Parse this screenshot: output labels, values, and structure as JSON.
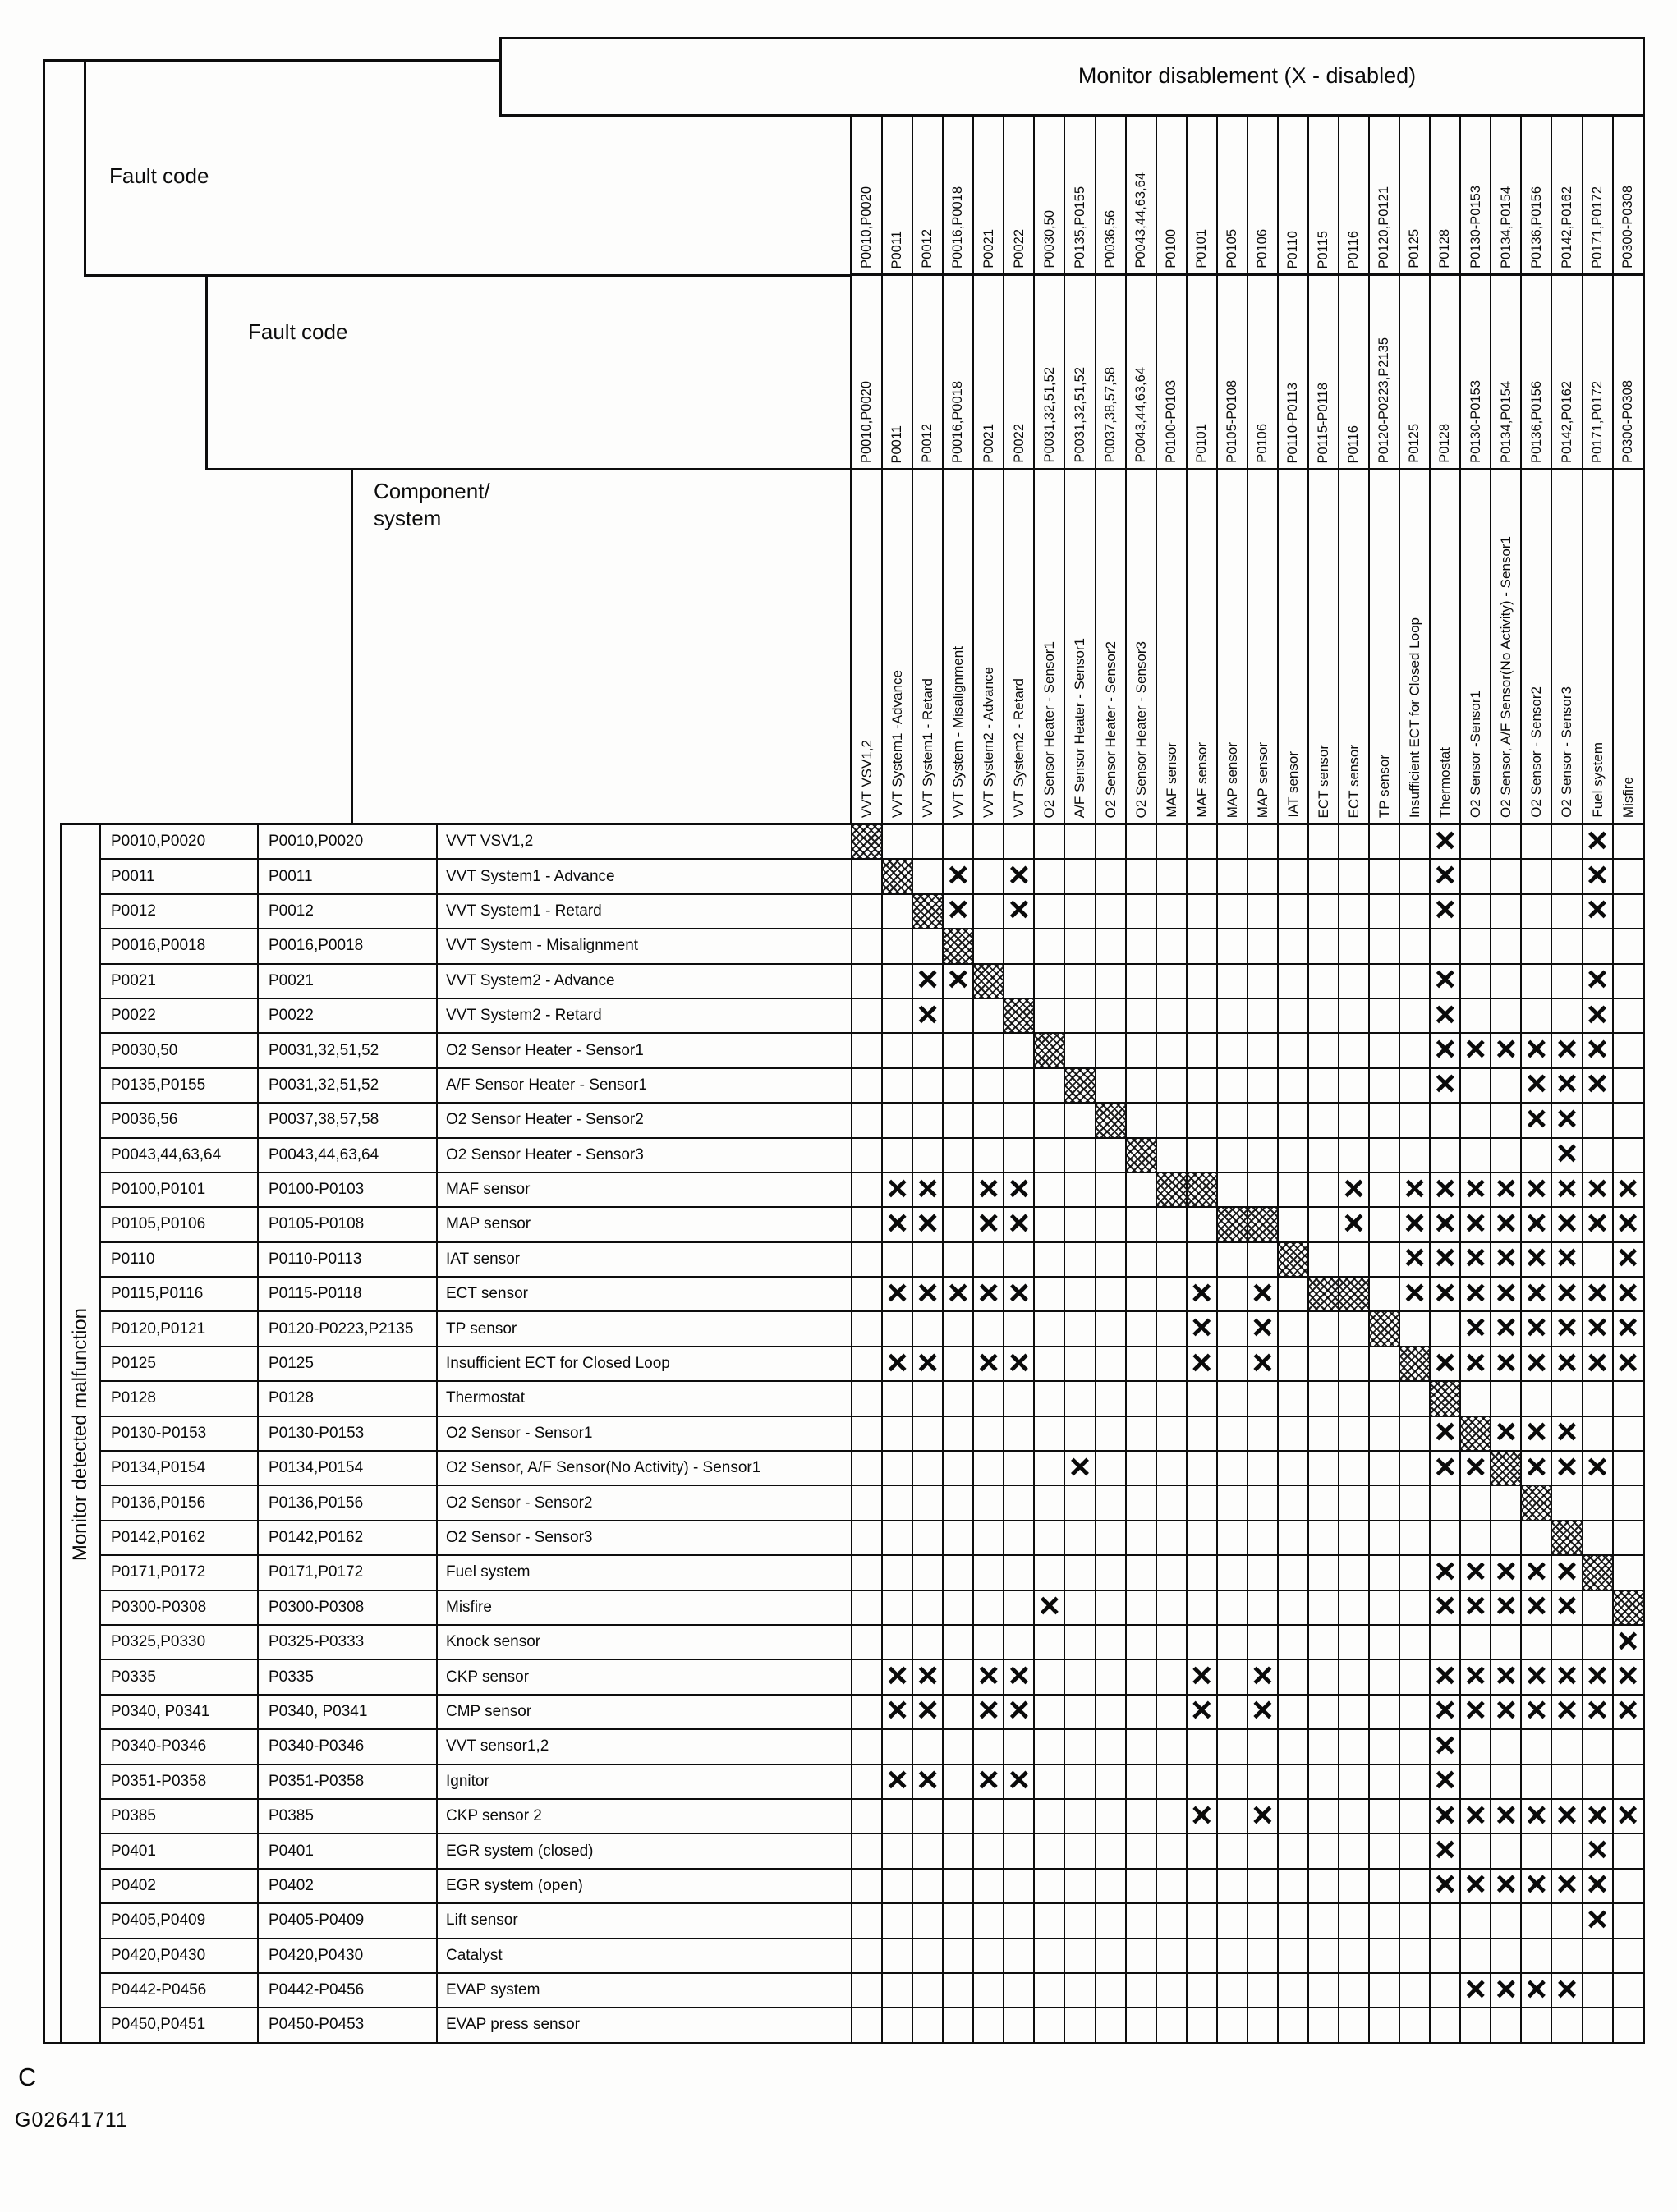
{
  "header": {
    "monitor_disablement": "Monitor disablement (X - disabled)",
    "fault_code_label_1": "Fault code",
    "fault_code_label_2": "Fault code",
    "component_label": "Component/\nsystem",
    "left_axis_label": "Monitor detected malfunction"
  },
  "marks": {
    "x_symbol": "×"
  },
  "columns": [
    {
      "band1": "P0010,P0020",
      "band2": "P0010,P0020",
      "component": "VVT VSV1,2"
    },
    {
      "band1": "P0011",
      "band2": "P0011",
      "component": "VVT System1 -Advance"
    },
    {
      "band1": "P0012",
      "band2": "P0012",
      "component": "VVT System1 - Retard"
    },
    {
      "band1": "P0016,P0018",
      "band2": "P0016,P0018",
      "component": "VVT System - Misalignment"
    },
    {
      "band1": "P0021",
      "band2": "P0021",
      "component": "VVT System2 - Advance"
    },
    {
      "band1": "P0022",
      "band2": "P0022",
      "component": "VVT System2 - Retard"
    },
    {
      "band1": "P0030,50",
      "band2": "P0031,32,51,52",
      "component": "O2 Sensor Heater - Sensor1"
    },
    {
      "band1": "P0135,P0155",
      "band2": "P0031,32,51,52",
      "component": "A/F Sensor Heater - Sensor1"
    },
    {
      "band1": "P0036,56",
      "band2": "P0037,38,57,58",
      "component": "O2 Sensor Heater - Sensor2"
    },
    {
      "band1": "P0043,44,63,64",
      "band2": "P0043,44,63,64",
      "component": "O2 Sensor Heater - Sensor3"
    },
    {
      "band1": "P0100",
      "band2": "P0100-P0103",
      "component": "MAF sensor"
    },
    {
      "band1": "P0101",
      "band2": "P0101",
      "component": "MAF sensor"
    },
    {
      "band1": "P0105",
      "band2": "P0105-P0108",
      "component": "MAP sensor"
    },
    {
      "band1": "P0106",
      "band2": "P0106",
      "component": "MAP sensor"
    },
    {
      "band1": "P0110",
      "band2": "P0110-P0113",
      "component": "IAT sensor"
    },
    {
      "band1": "P0115",
      "band2": "P0115-P0118",
      "component": "ECT sensor"
    },
    {
      "band1": "P0116",
      "band2": "P0116",
      "component": "ECT sensor"
    },
    {
      "band1": "P0120,P0121",
      "band2": "P0120-P0223,P2135",
      "component": "TP sensor"
    },
    {
      "band1": "P0125",
      "band2": "P0125",
      "component": "Insufficient ECT for Closed Loop"
    },
    {
      "band1": "P0128",
      "band2": "P0128",
      "component": "Thermostat"
    },
    {
      "band1": "P0130-P0153",
      "band2": "P0130-P0153",
      "component": "O2 Sensor -Sensor1"
    },
    {
      "band1": "P0134,P0154",
      "band2": "P0134,P0154",
      "component": "O2 Sensor, A/F Sensor(No Activity) - Sensor1"
    },
    {
      "band1": "P0136,P0156",
      "band2": "P0136,P0156",
      "component": "O2 Sensor - Sensor2"
    },
    {
      "band1": "P0142,P0162",
      "band2": "P0142,P0162",
      "component": "O2 Sensor - Sensor3"
    },
    {
      "band1": "P0171,P0172",
      "band2": "P0171,P0172",
      "component": "Fuel system"
    },
    {
      "band1": "P0300-P0308",
      "band2": "P0300-P0308",
      "component": "Misfire"
    }
  ],
  "rows": [
    {
      "fault1": "P0010,P0020",
      "fault2": "P0010,P0020",
      "component": "VVT VSV1,2",
      "shaded": [
        1
      ],
      "x": [
        20,
        25
      ]
    },
    {
      "fault1": "P0011",
      "fault2": "P0011",
      "component": "VVT System1 - Advance",
      "shaded": [
        2
      ],
      "x": [
        4,
        6,
        20,
        25
      ]
    },
    {
      "fault1": "P0012",
      "fault2": "P0012",
      "component": "VVT System1 - Retard",
      "shaded": [
        3
      ],
      "x": [
        4,
        6,
        20,
        25
      ]
    },
    {
      "fault1": "P0016,P0018",
      "fault2": "P0016,P0018",
      "component": "VVT System - Misalignment",
      "shaded": [
        4
      ],
      "x": []
    },
    {
      "fault1": "P0021",
      "fault2": "P0021",
      "component": "VVT System2 - Advance",
      "shaded": [
        5
      ],
      "x": [
        3,
        4,
        20,
        25
      ]
    },
    {
      "fault1": "P0022",
      "fault2": "P0022",
      "component": "VVT System2 - Retard",
      "shaded": [
        6
      ],
      "x": [
        3,
        20,
        25
      ]
    },
    {
      "fault1": "P0030,50",
      "fault2": "P0031,32,51,52",
      "component": "O2 Sensor Heater - Sensor1",
      "shaded": [
        7
      ],
      "x": [
        20,
        21,
        22,
        23,
        24,
        25
      ]
    },
    {
      "fault1": "P0135,P0155",
      "fault2": "P0031,32,51,52",
      "component": "A/F Sensor Heater  - Sensor1",
      "shaded": [
        8
      ],
      "x": [
        20,
        23,
        24,
        25
      ]
    },
    {
      "fault1": "P0036,56",
      "fault2": "P0037,38,57,58",
      "component": "O2 Sensor Heater - Sensor2",
      "shaded": [
        9
      ],
      "x": [
        23,
        24
      ]
    },
    {
      "fault1": "P0043,44,63,64",
      "fault2": "P0043,44,63,64",
      "component": "O2 Sensor Heater - Sensor3",
      "shaded": [
        10
      ],
      "x": [
        24
      ]
    },
    {
      "fault1": "P0100,P0101",
      "fault2": "P0100-P0103",
      "component": "MAF sensor",
      "shaded": [
        11,
        12
      ],
      "x": [
        2,
        3,
        5,
        6,
        17,
        19,
        20,
        21,
        22,
        23,
        24,
        25,
        26
      ]
    },
    {
      "fault1": "P0105,P0106",
      "fault2": "P0105-P0108",
      "component": "MAP sensor",
      "shaded": [
        13,
        14
      ],
      "x": [
        2,
        3,
        5,
        6,
        17,
        19,
        20,
        21,
        22,
        23,
        24,
        25,
        26
      ]
    },
    {
      "fault1": "P0110",
      "fault2": "P0110-P0113",
      "component": "IAT sensor",
      "shaded": [
        15
      ],
      "x": [
        19,
        20,
        21,
        22,
        23,
        24,
        26
      ]
    },
    {
      "fault1": "P0115,P0116",
      "fault2": "P0115-P0118",
      "component": "ECT sensor",
      "shaded": [
        16,
        17
      ],
      "x": [
        2,
        3,
        4,
        5,
        6,
        12,
        14,
        19,
        20,
        21,
        22,
        23,
        24,
        25,
        26
      ]
    },
    {
      "fault1": "P0120,P0121",
      "fault2": "P0120-P0223,P2135",
      "component": "TP sensor",
      "shaded": [
        18
      ],
      "x": [
        12,
        14,
        21,
        22,
        23,
        24,
        25,
        26
      ]
    },
    {
      "fault1": "P0125",
      "fault2": "P0125",
      "component": "Insufficient ECT for Closed Loop",
      "shaded": [
        19
      ],
      "x": [
        2,
        3,
        5,
        6,
        12,
        14,
        20,
        21,
        22,
        23,
        24,
        25,
        26
      ]
    },
    {
      "fault1": "P0128",
      "fault2": "P0128",
      "component": "Thermostat",
      "shaded": [
        20
      ],
      "x": []
    },
    {
      "fault1": "P0130-P0153",
      "fault2": "P0130-P0153",
      "component": "O2 Sensor - Sensor1",
      "shaded": [
        21
      ],
      "x": [
        20,
        22,
        23,
        24
      ]
    },
    {
      "fault1": "P0134,P0154",
      "fault2": "P0134,P0154",
      "component": "O2 Sensor, A/F Sensor(No Activity) - Sensor1",
      "shaded": [
        22
      ],
      "x": [
        8,
        20,
        21,
        23,
        24,
        25
      ]
    },
    {
      "fault1": "P0136,P0156",
      "fault2": "P0136,P0156",
      "component": "O2 Sensor - Sensor2",
      "shaded": [
        23
      ],
      "x": []
    },
    {
      "fault1": "P0142,P0162",
      "fault2": "P0142,P0162",
      "component": "O2 Sensor - Sensor3",
      "shaded": [
        24
      ],
      "x": []
    },
    {
      "fault1": "P0171,P0172",
      "fault2": "P0171,P0172",
      "component": "Fuel system",
      "shaded": [
        25
      ],
      "x": [
        20,
        21,
        22,
        23,
        24
      ]
    },
    {
      "fault1": "P0300-P0308",
      "fault2": "P0300-P0308",
      "component": "Misfire",
      "shaded": [
        26
      ],
      "x": [
        7,
        20,
        21,
        22,
        23,
        24
      ]
    },
    {
      "fault1": "P0325,P0330",
      "fault2": "P0325-P0333",
      "component": "Knock sensor",
      "shaded": [],
      "x": [
        26
      ]
    },
    {
      "fault1": "P0335",
      "fault2": "P0335",
      "component": "CKP sensor",
      "shaded": [],
      "x": [
        2,
        3,
        5,
        6,
        12,
        14,
        20,
        21,
        22,
        23,
        24,
        25,
        26
      ]
    },
    {
      "fault1": "P0340, P0341",
      "fault2": "P0340, P0341",
      "component": "CMP sensor",
      "shaded": [],
      "x": [
        2,
        3,
        5,
        6,
        12,
        14,
        20,
        21,
        22,
        23,
        24,
        25,
        26
      ]
    },
    {
      "fault1": "P0340-P0346",
      "fault2": "P0340-P0346",
      "component": "VVT sensor1,2",
      "shaded": [],
      "x": [
        20
      ]
    },
    {
      "fault1": "P0351-P0358",
      "fault2": "P0351-P0358",
      "component": "Ignitor",
      "shaded": [],
      "x": [
        2,
        3,
        5,
        6,
        20
      ]
    },
    {
      "fault1": "P0385",
      "fault2": "P0385",
      "component": "CKP sensor 2",
      "shaded": [],
      "x": [
        12,
        14,
        20,
        21,
        22,
        23,
        24,
        25,
        26
      ]
    },
    {
      "fault1": "P0401",
      "fault2": "P0401",
      "component": "EGR system (closed)",
      "shaded": [],
      "x": [
        20,
        25
      ]
    },
    {
      "fault1": "P0402",
      "fault2": "P0402",
      "component": "EGR system (open)",
      "shaded": [],
      "x": [
        20,
        21,
        22,
        23,
        24,
        25
      ]
    },
    {
      "fault1": "P0405,P0409",
      "fault2": "P0405-P0409",
      "component": "Lift sensor",
      "shaded": [],
      "x": [
        25
      ]
    },
    {
      "fault1": "P0420,P0430",
      "fault2": "P0420,P0430",
      "component": "Catalyst",
      "shaded": [],
      "x": []
    },
    {
      "fault1": "P0442-P0456",
      "fault2": "P0442-P0456",
      "component": "EVAP system",
      "shaded": [],
      "x": [
        21,
        22,
        23,
        24
      ]
    },
    {
      "fault1": "P0450,P0451",
      "fault2": "P0450-P0453",
      "component": "EVAP press sensor",
      "shaded": [],
      "x": []
    }
  ],
  "footer": {
    "page_letter": "C",
    "figure_code": "G02641711"
  }
}
